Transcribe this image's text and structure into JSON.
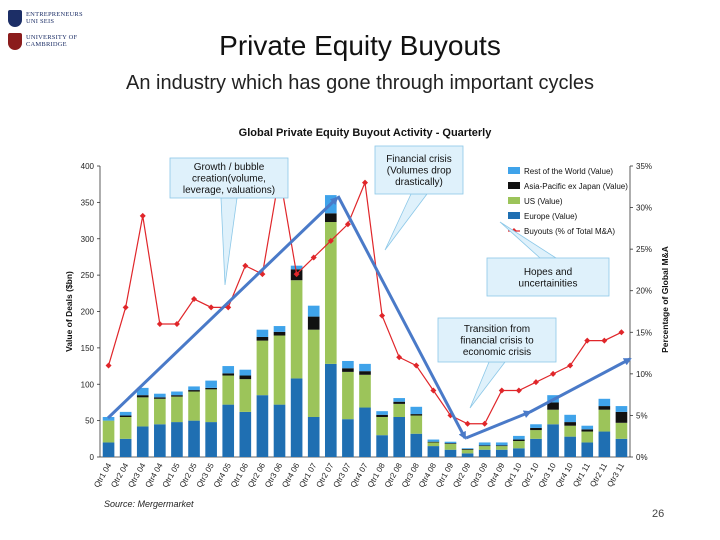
{
  "logo": {
    "line1": "ENTREPRENEURS",
    "line2": "UNI SEIS",
    "line3": "UNIVERSITY OF",
    "line4": "CAMBRIDGE"
  },
  "title": "Private Equity Buyouts",
  "subtitle": "An industry which has gone through important cycles",
  "source": "Source: Mergermarket",
  "page_number": "26",
  "callouts": [
    {
      "lines": [
        "Growth / bubble",
        "creation(volume,",
        "leverage, valuations)"
      ]
    },
    {
      "lines": [
        "Financial crisis",
        "(Volumes drop",
        "drastically)"
      ]
    },
    {
      "lines": [
        "Hopes and",
        "uncertainities"
      ]
    },
    {
      "lines": [
        "Transition from",
        "financial crisis to",
        "economic crisis"
      ]
    }
  ],
  "colors": {
    "europe": "#1f6fb2",
    "us": "#9cc45a",
    "apac": "#111111",
    "row": "#3fa3ea",
    "line": "#e0262a",
    "callout_fill": "#dff1fb",
    "arrow": "#4a7ac8"
  },
  "chart_data": {
    "type": "bar",
    "title": "Global Private Equity Buyout Activity - Quarterly",
    "ylabel": "Value of Deals ($bn)",
    "y2label": "Percentage of Global M&A",
    "ylim": [
      0,
      400
    ],
    "y2lim": [
      0,
      35
    ],
    "yticks": [
      "0",
      "50",
      "100",
      "150",
      "200",
      "250",
      "300",
      "350",
      "400"
    ],
    "y2ticks": [
      "0%",
      "5%",
      "10%",
      "15%",
      "20%",
      "25%",
      "30%",
      "35%"
    ],
    "grid": false,
    "stacked": true,
    "legend_position": "top-right",
    "categories": [
      "Qtr1 04",
      "Qtr2 04",
      "Qtr3 04",
      "Qtr4 04",
      "Qtr1 05",
      "Qtr2 05",
      "Qtr3 05",
      "Qtr4 05",
      "Qtr1 06",
      "Qtr2 06",
      "Qtr3 06",
      "Qtr4 06",
      "Qtr1 07",
      "Qtr2 07",
      "Qtr3 07",
      "Qtr4 07",
      "Qtr1 08",
      "Qtr2 08",
      "Qtr3 08",
      "Qtr4 08",
      "Qtr1 09",
      "Qtr2 09",
      "Qtr3 09",
      "Qtr4 09",
      "Qtr1 10",
      "Qtr2 10",
      "Qtr3 10",
      "Qtr4 10",
      "Qtr1 11",
      "Qtr2 11",
      "Qtr3 11"
    ],
    "series": [
      {
        "name": "Europe (Value)",
        "values": [
          20,
          25,
          42,
          45,
          48,
          50,
          48,
          72,
          62,
          85,
          72,
          108,
          55,
          128,
          52,
          68,
          30,
          55,
          32,
          15,
          10,
          5,
          10,
          10,
          12,
          25,
          45,
          28,
          20,
          35,
          25
        ]
      },
      {
        "name": "US (Value)",
        "values": [
          30,
          30,
          40,
          35,
          35,
          40,
          45,
          40,
          45,
          75,
          95,
          135,
          120,
          195,
          65,
          45,
          25,
          18,
          25,
          5,
          8,
          5,
          5,
          5,
          10,
          12,
          20,
          15,
          15,
          30,
          22
        ]
      },
      {
        "name": "Asia-Pacific ex Japan (Value)",
        "values": [
          0,
          2,
          3,
          2,
          2,
          2,
          2,
          3,
          5,
          5,
          5,
          15,
          18,
          12,
          5,
          5,
          3,
          3,
          2,
          1,
          1,
          1,
          1,
          1,
          2,
          3,
          10,
          5,
          3,
          5,
          15
        ]
      },
      {
        "name": "Rest of the World (Value)",
        "values": [
          5,
          5,
          10,
          5,
          5,
          5,
          10,
          10,
          8,
          10,
          8,
          5,
          15,
          25,
          10,
          10,
          5,
          5,
          10,
          3,
          2,
          1,
          4,
          4,
          5,
          5,
          10,
          10,
          5,
          10,
          8
        ]
      },
      {
        "name": "Buyouts (% of Total M&A)",
        "axis": "secondary",
        "type": "line",
        "values": [
          11,
          18,
          29,
          16,
          16,
          19,
          18,
          18,
          23,
          22,
          34,
          22,
          24,
          26,
          28,
          33,
          17,
          12,
          11,
          8,
          5,
          4,
          4,
          8,
          8,
          9,
          10,
          11,
          14,
          14,
          15
        ]
      }
    ],
    "legend_order": [
      "Rest of the World (Value)",
      "Asia-Pacific ex Japan (Value)",
      "US (Value)",
      "Europe (Value)",
      "Buyouts (% of Total M&A)"
    ]
  }
}
